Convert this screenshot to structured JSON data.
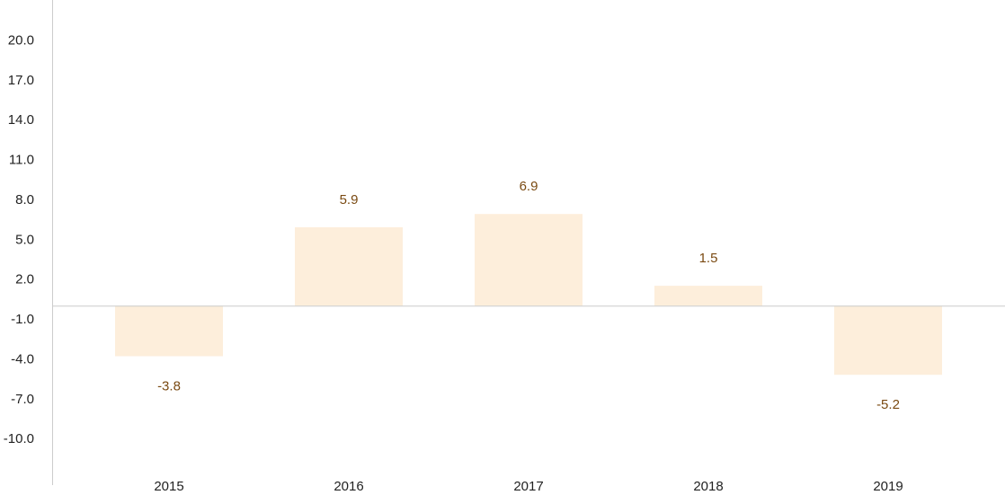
{
  "chart_data": {
    "type": "bar",
    "categories": [
      "2015",
      "2016",
      "2017",
      "2018",
      "2019"
    ],
    "values": [
      -3.8,
      5.9,
      6.9,
      1.5,
      -5.2
    ],
    "value_labels": [
      "-3.8",
      "5.9",
      "6.9",
      "1.5",
      "-5.2"
    ],
    "yticks": [
      20.0,
      17.0,
      14.0,
      11.0,
      8.0,
      5.0,
      2.0,
      -1.0,
      -4.0,
      -7.0,
      -10.0
    ],
    "ytick_labels": [
      "20.0",
      "17.0",
      "14.0",
      "11.0",
      "8.0",
      "5.0",
      "2.0",
      "-1.0",
      "-4.0",
      "-7.0",
      "-10.0"
    ],
    "ylim": [
      -13.5,
      23.0
    ],
    "grid": false,
    "legend": "none",
    "colors": {
      "bar": "#fdeedb",
      "label": "#7a4a12",
      "axis": "#cccccc",
      "tick_text": "#222222"
    }
  }
}
